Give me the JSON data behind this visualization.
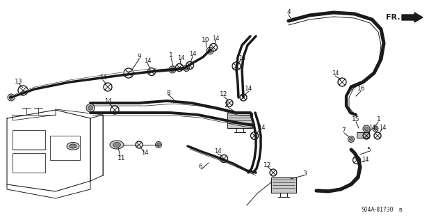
{
  "bg_color": "#ffffff",
  "line_color": "#1a1a1a",
  "diagram_ref": "S04A-81730",
  "fr_label": "FR.",
  "figsize": [
    6.4,
    3.19
  ],
  "dpi": 100,
  "lw_hose": 2.8,
  "lw_hose_inner": 1.0,
  "lw_thin": 0.7,
  "lw_clamp": 1.0
}
